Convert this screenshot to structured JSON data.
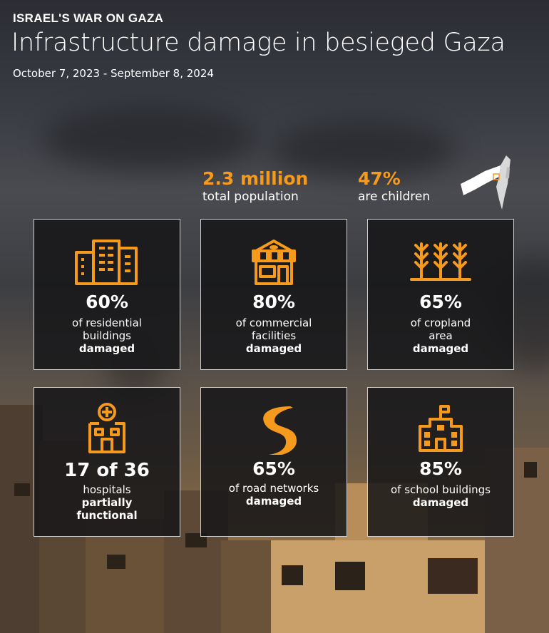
{
  "header": {
    "kicker": "ISRAEL'S WAR ON GAZA",
    "title": "Infrastructure damage in besieged Gaza",
    "date_range": "October 7, 2023 - September 8, 2024"
  },
  "stats": {
    "population": {
      "value": "2.3 million",
      "label": "total population"
    },
    "children": {
      "value": "47%",
      "label": "are children"
    }
  },
  "accent_color": "#f59a1c",
  "cards": [
    {
      "icon": "residential-buildings-icon",
      "value": "60%",
      "line1": "of residential",
      "line2": "buildings",
      "emphasis": "damaged"
    },
    {
      "icon": "shop-icon",
      "value": "80%",
      "line1": "of commercial",
      "line2": "facilities",
      "emphasis": "damaged"
    },
    {
      "icon": "wheat-crop-icon",
      "value": "65%",
      "line1": "of cropland",
      "line2": "area",
      "emphasis": "damaged"
    },
    {
      "icon": "hospital-icon",
      "value": "17 of 36",
      "line1": "hospitals",
      "line2": "partially",
      "emphasis": "functional"
    },
    {
      "icon": "road-icon",
      "value": "65%",
      "line1": "of road networks",
      "line2": "",
      "emphasis": "damaged"
    },
    {
      "icon": "school-icon",
      "value": "85%",
      "line1": "of school buildings",
      "line2": "",
      "emphasis": "damaged"
    }
  ]
}
